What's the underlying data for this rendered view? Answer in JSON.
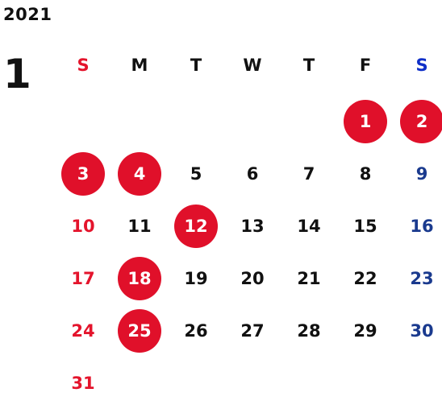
{
  "year": "2021",
  "month": "1",
  "weekdays": [
    "S",
    "M",
    "T",
    "W",
    "T",
    "F",
    "S"
  ],
  "weeks": [
    [
      "",
      "",
      "",
      "",
      "",
      "1",
      "2"
    ],
    [
      "3",
      "4",
      "5",
      "6",
      "7",
      "8",
      "9"
    ],
    [
      "10",
      "11",
      "12",
      "13",
      "14",
      "15",
      "16"
    ],
    [
      "17",
      "18",
      "19",
      "20",
      "21",
      "22",
      "23"
    ],
    [
      "24",
      "25",
      "26",
      "27",
      "28",
      "29",
      "30"
    ],
    [
      "31",
      "",
      "",
      "",
      "",
      "",
      ""
    ]
  ],
  "holidays": [
    "1",
    "2",
    "3",
    "4",
    "12",
    "18",
    "25"
  ],
  "colors": {
    "sunday": "#e4142c",
    "saturday_header": "#0f2fc8",
    "saturday": "#1a3a8e",
    "weekday": "#111111",
    "holiday_fill": "#e0102a",
    "holiday_text": "#ffffff"
  }
}
